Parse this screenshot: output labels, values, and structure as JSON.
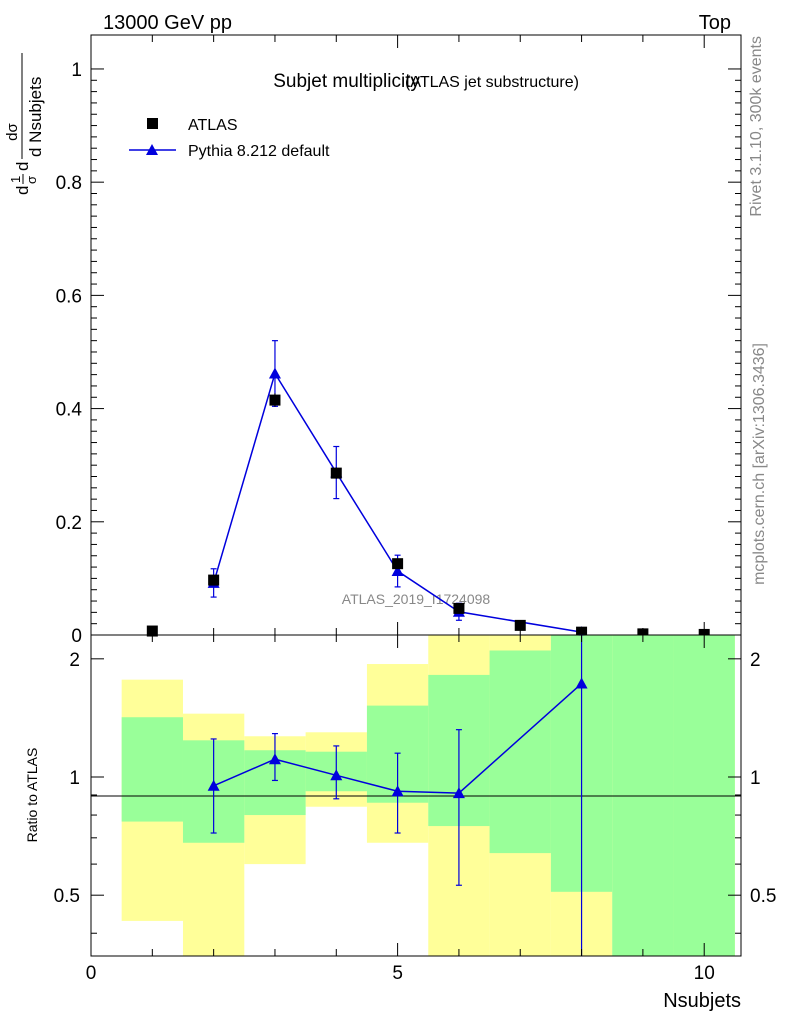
{
  "header": {
    "energy_label": "13000 GeV pp",
    "process_label": "Top"
  },
  "side_labels": {
    "rivet": "Rivet 3.1.10,  300k events",
    "mcplots": "mcplots.cern.ch [arXiv:1306.3436]"
  },
  "watermark": "ATLAS_2019_I1724098",
  "colors": {
    "mc": "#0000dd",
    "green_band": "#99ff99",
    "yellow_band": "#ffff99",
    "data": "#000000"
  },
  "chart_data": [
    {
      "type": "scatter",
      "panel": "main",
      "title": "Subjet multiplicity",
      "subtitle": "(ATLAS jet substructure)",
      "xlabel": "Nsubjets",
      "ylabel": "1/σ dσ/d Nsubjets",
      "ylabel_parts": {
        "frac_num": "d",
        "frac_sym": "1",
        "frac_den": "σ",
        "num": "dσ",
        "den": "d Nsubjets"
      },
      "xlim": [
        0,
        10.6
      ],
      "ylim": [
        0,
        1.06
      ],
      "yticks": [
        0,
        0.2,
        0.4,
        0.6,
        0.8,
        1
      ],
      "ytick_labels": [
        "0",
        "0.2",
        "0.4",
        "0.6",
        "0.8",
        "1"
      ],
      "legend": {
        "position": "top-left",
        "data_label": "ATLAS",
        "mc_label": "Pythia 8.212 default"
      },
      "data": {
        "name": "ATLAS",
        "x": [
          1,
          2,
          3,
          4,
          5,
          6,
          7,
          8,
          9,
          10
        ],
        "y": [
          0.007,
          0.097,
          0.415,
          0.286,
          0.126,
          0.047,
          0.017,
          0.005,
          0.002,
          0.001
        ],
        "yerr": [
          0.001,
          0.005,
          0.012,
          0.01,
          0.006,
          0.004,
          0.002,
          0.001,
          0.001,
          0.0005
        ]
      },
      "series": [
        {
          "name": "Pythia 8.212 default",
          "x": [
            2,
            3,
            4,
            5,
            6,
            8
          ],
          "y": [
            0.092,
            0.462,
            0.287,
            0.113,
            0.041,
            0.005
          ],
          "yerr": [
            0.025,
            0.058,
            0.046,
            0.028,
            0.015,
            0.004
          ]
        }
      ]
    },
    {
      "type": "scatter",
      "panel": "ratio",
      "ylabel": "Ratio to ATLAS",
      "xlabel": "Nsubjets",
      "xlim": [
        0,
        10.6
      ],
      "ylim": [
        0.35,
        2.3
      ],
      "yscale": "log",
      "xticks": [
        0,
        5,
        10
      ],
      "xtick_labels": [
        "0",
        "5",
        "10"
      ],
      "yticks": [
        0.5,
        1,
        2
      ],
      "ytick_labels": [
        "0.5",
        "1",
        "2"
      ],
      "bins": [
        [
          0.5,
          1.5
        ],
        [
          1.5,
          2.5
        ],
        [
          2.5,
          3.5
        ],
        [
          3.5,
          4.5
        ],
        [
          4.5,
          5.5
        ],
        [
          5.5,
          6.5
        ],
        [
          6.5,
          7.5
        ],
        [
          7.5,
          8.5
        ],
        [
          8.5,
          9.5
        ],
        [
          9.5,
          10.5
        ]
      ],
      "green_band": [
        [
          0.77,
          1.42
        ],
        [
          0.68,
          1.24
        ],
        [
          0.8,
          1.17
        ],
        [
          0.92,
          1.16
        ],
        [
          0.86,
          1.52
        ],
        [
          0.75,
          1.82
        ],
        [
          0.64,
          2.1
        ],
        [
          0.51,
          2.5
        ],
        [
          0.3,
          2.5
        ],
        [
          0.3,
          2.5
        ]
      ],
      "yellow_band": [
        [
          0.43,
          1.77
        ],
        [
          0.32,
          1.45
        ],
        [
          0.6,
          1.27
        ],
        [
          0.84,
          1.3
        ],
        [
          0.68,
          1.94
        ],
        [
          0.3,
          2.5
        ],
        [
          0.3,
          2.5
        ],
        [
          0.3,
          2.5
        ],
        [
          0.3,
          2.5
        ],
        [
          0.3,
          2.5
        ]
      ],
      "series": [
        {
          "name": "Pythia 8.212 default",
          "x": [
            2,
            3,
            4,
            5,
            6,
            8
          ],
          "y": [
            0.95,
            1.11,
            1.01,
            0.92,
            0.91,
            1.73
          ],
          "yerr_up": [
            0.3,
            0.18,
            0.19,
            0.23,
            0.41,
            0.57
          ],
          "yerr_down": [
            0.23,
            0.13,
            0.13,
            0.2,
            0.38,
            1.4
          ]
        }
      ]
    }
  ]
}
